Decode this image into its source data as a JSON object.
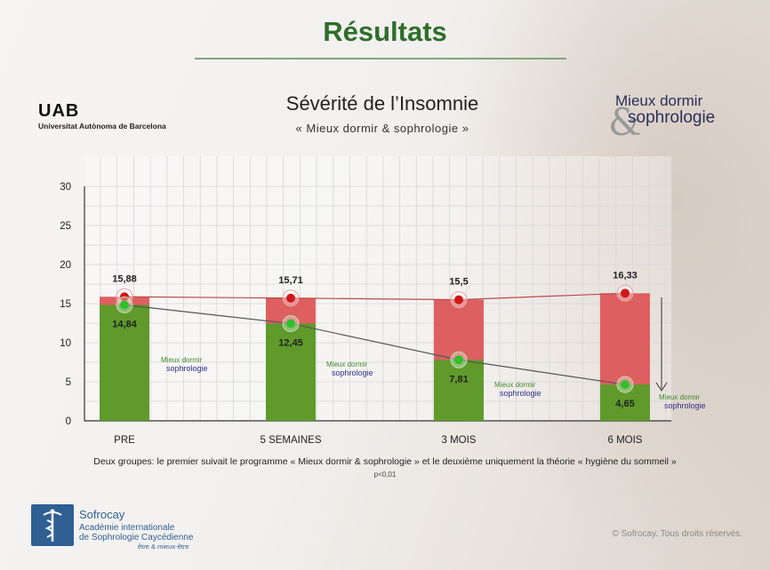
{
  "header": {
    "title": "Résultats"
  },
  "uab": {
    "logo": "UAB",
    "name": "Universitat Autònoma de Barcelona"
  },
  "brand": {
    "line1": "Mieux dormir",
    "ampersand": "&",
    "line2": "sophrologie"
  },
  "chart_data": {
    "type": "bar",
    "title": "Sévérité de l’Insomnie",
    "subtitle": "« Mieux dormir & sophrologie »",
    "categories": [
      "PRE",
      "5 SEMAINES",
      "3 MOIS",
      "6 MOIS"
    ],
    "series": [
      {
        "name": "",
        "color": "#dd5f5f",
        "values": [
          15.88,
          15.71,
          15.5,
          16.33
        ]
      },
      {
        "name": "",
        "color": "#5f9a2b",
        "values": [
          14.84,
          12.45,
          7.81,
          4.65
        ]
      }
    ],
    "value_labels": {
      "red": [
        "15,88",
        "15,71",
        "15,5",
        "16,33"
      ],
      "green": [
        "14,84",
        "12,45",
        "7,81",
        "4,65"
      ]
    },
    "yticks": [
      "0",
      "5",
      "10",
      "15",
      "20",
      "25",
      "30"
    ],
    "ylim": [
      0,
      30
    ],
    "grid": true,
    "series_labels": [
      {
        "line1": "Mieux dormir",
        "line2": "sophrologie"
      },
      {
        "line1": "Mieux dormir",
        "line2": "sophrologie"
      },
      {
        "line1": "Mieux dormir",
        "line2": "sophrologie"
      },
      {
        "line1": "Mieux dormir",
        "line2": "sophrologie"
      }
    ]
  },
  "caption": "Deux groupes: le premier suivait le programme « Mieux dormir & sophrologie » et le deuxième uniquement la théorie « hygiène du sommeil »",
  "pvalue": "p<0,01",
  "footer": {
    "org_name": "Sofrocay",
    "org_line1": "Académie internationale",
    "org_line2": "de Sophrologie Caycédienne",
    "org_line3": "être & mieux-être",
    "copyright": "© Sofrocay. Tous droits réservés."
  },
  "colors": {
    "title_green": "#2f6e2a",
    "bar_red": "#dd5f5f",
    "bar_green": "#5f9a2b",
    "point_red": "#d01818",
    "point_green": "#2ec22e",
    "brand_blue": "#2b2f5a"
  }
}
